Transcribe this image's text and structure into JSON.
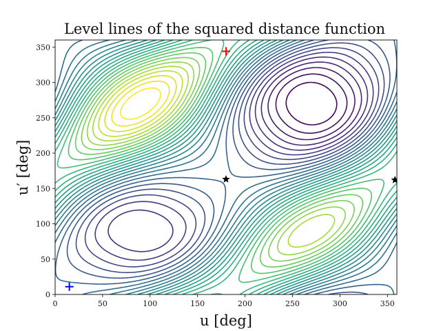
{
  "chart_data": {
    "type": "contour",
    "title": "Level lines of the squared distance function",
    "xlabel": "u [deg]",
    "ylabel": "u′ [deg]",
    "xlim": [
      0,
      360
    ],
    "ylim": [
      0,
      360
    ],
    "xticks": [
      0,
      50,
      100,
      150,
      200,
      250,
      300,
      350
    ],
    "yticks": [
      0,
      50,
      100,
      150,
      200,
      250,
      300,
      350
    ],
    "colormap": "viridis",
    "level_count": 30,
    "grid": false,
    "markers": [
      {
        "kind": "plus",
        "color": "#ff0000",
        "x": 180,
        "y": 344
      },
      {
        "kind": "plus",
        "color": "#0000ff",
        "x": 15,
        "y": 11
      },
      {
        "kind": "star",
        "color": "#000000",
        "x": 180,
        "y": 163
      },
      {
        "kind": "star",
        "color": "#000000",
        "x": 358,
        "y": 162
      }
    ]
  }
}
